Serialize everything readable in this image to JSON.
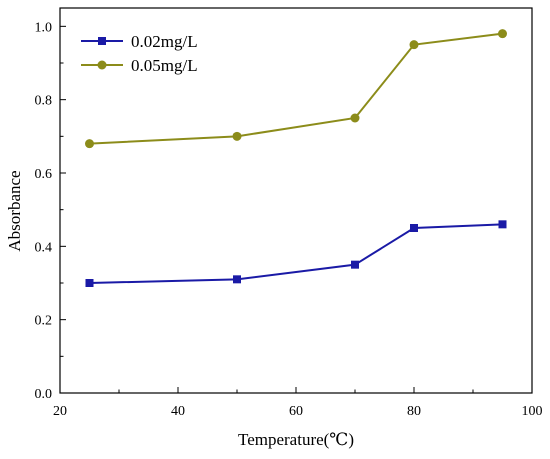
{
  "chart_data": {
    "type": "line",
    "title": "",
    "xlabel": "Temperature(℃)",
    "ylabel": "Absorbance",
    "xlim": [
      20,
      100
    ],
    "ylim": [
      0.0,
      1.05
    ],
    "xticks": [
      20,
      40,
      60,
      80,
      100
    ],
    "yticks": [
      0.0,
      0.2,
      0.4,
      0.6,
      0.8,
      1.0
    ],
    "xtick_labels": [
      "20",
      "40",
      "60",
      "80",
      "100"
    ],
    "ytick_labels": [
      "0.0",
      "0.2",
      "0.4",
      "0.6",
      "0.8",
      "1.0"
    ],
    "grid": false,
    "legend_position": "top-left",
    "x": [
      25,
      50,
      70,
      80,
      95
    ],
    "series": [
      {
        "name": "0.02mg/L",
        "values": [
          0.3,
          0.31,
          0.35,
          0.45,
          0.46
        ],
        "color": "#1a1aa6",
        "marker": "square"
      },
      {
        "name": "0.05mg/L",
        "values": [
          0.68,
          0.7,
          0.75,
          0.95,
          0.98
        ],
        "color": "#8c8c1a",
        "marker": "circle"
      }
    ]
  }
}
